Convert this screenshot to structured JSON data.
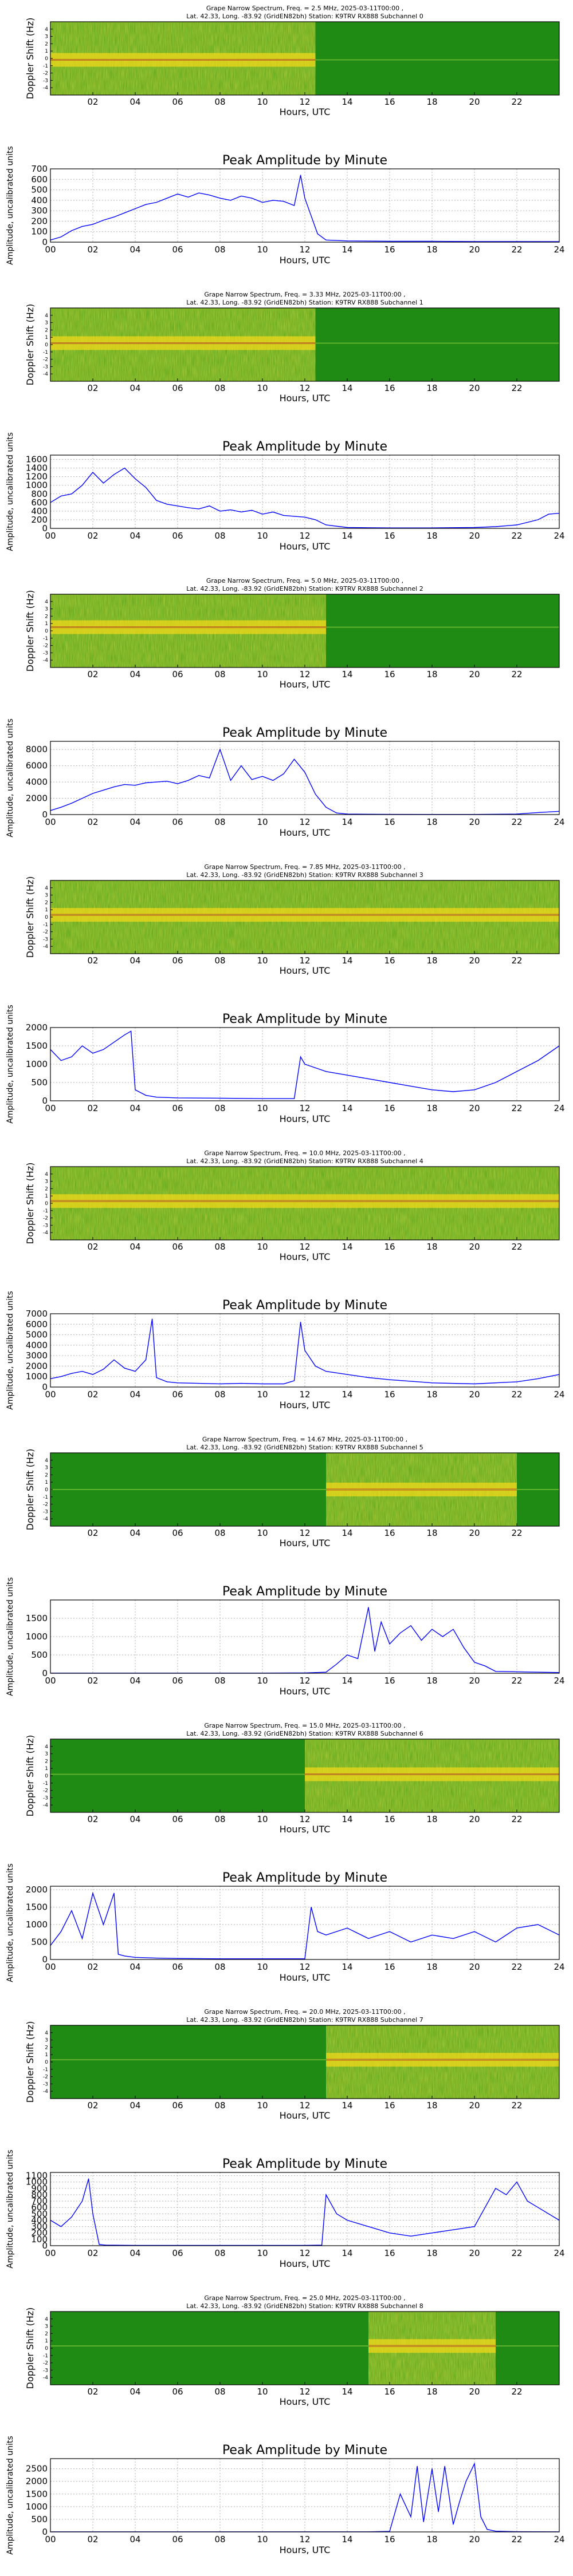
{
  "colors": {
    "spectrogram_background": "#1f8a14",
    "spectrogram_band": "#f0d81a",
    "spectrogram_peak": "#e8300a",
    "line_series": "#0000ff",
    "grid": "#b0b0b0",
    "axes": "#000000"
  },
  "shared": {
    "x_ticks_spectrogram": [
      "02",
      "04",
      "06",
      "08",
      "10",
      "12",
      "14",
      "16",
      "18",
      "20",
      "22"
    ],
    "x_ticks_amplitude": [
      "00",
      "02",
      "04",
      "06",
      "08",
      "10",
      "12",
      "14",
      "16",
      "18",
      "20",
      "22",
      "24"
    ],
    "xlabel": "Hours, UTC",
    "spectrogram_ylabel": "Doppler Shift (Hz)",
    "amplitude_ylabel": "Amplitude, uncalibrated units",
    "amplitude_title": "Peak Amplitude by Minute",
    "doppler_ticks": [
      "4",
      "3",
      "2",
      "1",
      "0",
      "-1",
      "-2",
      "-3",
      "-4"
    ]
  },
  "chart_data": [
    {
      "type": "heatmap",
      "subchannel": 0,
      "title_line1": "Grape Narrow Spectrum, Freq. = 2.5 MHz, 2025-03-11T00:00 ,",
      "title_line2": "Lat. 42.33, Long. -83.92 (GridEN82bh) Station: K9TRV RX888 Subchannel 0",
      "xlim": [
        0,
        24
      ],
      "ylim": [
        -5,
        5
      ],
      "active_hours": [
        0,
        12.5
      ],
      "band_center_hz": -0.2
    },
    {
      "type": "line",
      "subchannel": 0,
      "title": "Peak Amplitude by Minute",
      "xlabel": "Hours, UTC",
      "ylabel": "Amplitude, uncalibrated units",
      "xlim": [
        0,
        24
      ],
      "ylim": [
        0,
        700
      ],
      "yticks": [
        0,
        100,
        200,
        300,
        400,
        500,
        600,
        700
      ],
      "x": [
        0,
        0.5,
        1,
        1.5,
        2,
        2.5,
        3,
        3.5,
        4,
        4.5,
        5,
        5.5,
        6,
        6.5,
        7,
        7.5,
        8,
        8.5,
        9,
        9.5,
        10,
        10.5,
        11,
        11.5,
        11.8,
        12,
        12.3,
        12.6,
        13,
        14,
        16,
        18,
        20,
        22,
        24
      ],
      "values": [
        20,
        50,
        110,
        150,
        170,
        210,
        240,
        280,
        320,
        360,
        380,
        420,
        460,
        430,
        470,
        450,
        420,
        400,
        440,
        420,
        380,
        400,
        390,
        350,
        640,
        420,
        250,
        80,
        20,
        12,
        8,
        8,
        6,
        6,
        5
      ]
    },
    {
      "type": "heatmap",
      "subchannel": 1,
      "title_line1": "Grape Narrow Spectrum, Freq. = 3.33 MHz, 2025-03-11T00:00 ,",
      "title_line2": "Lat. 42.33, Long. -83.92 (GridEN82bh) Station: K9TRV RX888 Subchannel 1",
      "xlim": [
        0,
        24
      ],
      "ylim": [
        -5,
        5
      ],
      "active_hours": [
        0,
        12.5
      ],
      "band_center_hz": 0.2
    },
    {
      "type": "line",
      "subchannel": 1,
      "title": "Peak Amplitude by Minute",
      "xlabel": "Hours, UTC",
      "ylabel": "Amplitude, uncalibrated units",
      "xlim": [
        0,
        24
      ],
      "ylim": [
        0,
        1700
      ],
      "yticks": [
        0,
        200,
        400,
        600,
        800,
        1000,
        1200,
        1400,
        1600
      ],
      "x": [
        0,
        0.5,
        1,
        1.5,
        2,
        2.5,
        3,
        3.5,
        4,
        4.5,
        5,
        5.5,
        6,
        6.5,
        7,
        7.5,
        8,
        8.5,
        9,
        9.5,
        10,
        10.5,
        11,
        11.5,
        12,
        12.5,
        13,
        14,
        16,
        18,
        20,
        21,
        22,
        23,
        23.5,
        24
      ],
      "values": [
        600,
        750,
        800,
        1000,
        1300,
        1050,
        1250,
        1400,
        1150,
        950,
        650,
        560,
        520,
        480,
        450,
        520,
        400,
        430,
        380,
        420,
        330,
        380,
        300,
        280,
        260,
        200,
        80,
        20,
        10,
        10,
        20,
        40,
        80,
        200,
        330,
        350
      ]
    },
    {
      "type": "heatmap",
      "subchannel": 2,
      "title_line1": "Grape Narrow Spectrum, Freq. = 5.0 MHz, 2025-03-11T00:00 ,",
      "title_line2": "Lat. 42.33, Long. -83.92 (GridEN82bh) Station: K9TRV RX888 Subchannel 2",
      "xlim": [
        0,
        24
      ],
      "ylim": [
        -5,
        5
      ],
      "active_hours": [
        0,
        13
      ],
      "band_center_hz": 0.5
    },
    {
      "type": "line",
      "subchannel": 2,
      "title": "Peak Amplitude by Minute",
      "xlabel": "Hours, UTC",
      "ylabel": "Amplitude, uncalibrated units",
      "xlim": [
        0,
        24
      ],
      "ylim": [
        0,
        9000
      ],
      "yticks": [
        0,
        2000,
        4000,
        6000,
        8000
      ],
      "x": [
        0,
        0.5,
        1,
        1.5,
        2,
        2.5,
        3,
        3.5,
        4,
        4.5,
        5,
        5.5,
        6,
        6.5,
        7,
        7.5,
        8,
        8.5,
        9,
        9.5,
        10,
        10.5,
        11,
        11.5,
        12,
        12.5,
        13,
        13.5,
        14,
        16,
        18,
        20,
        22,
        23,
        24
      ],
      "values": [
        500,
        900,
        1400,
        2000,
        2600,
        3000,
        3400,
        3700,
        3600,
        3900,
        4000,
        4100,
        3800,
        4200,
        4800,
        4500,
        8000,
        4200,
        6000,
        4300,
        4700,
        4200,
        5000,
        6800,
        5200,
        2500,
        900,
        200,
        60,
        30,
        20,
        20,
        60,
        250,
        400
      ]
    },
    {
      "type": "heatmap",
      "subchannel": 3,
      "title_line1": "Grape Narrow Spectrum, Freq. = 7.85 MHz, 2025-03-11T00:00 ,",
      "title_line2": "Lat. 42.33, Long. -83.92 (GridEN82bh) Station: K9TRV RX888 Subchannel 3",
      "xlim": [
        0,
        24
      ],
      "ylim": [
        -5,
        5
      ],
      "active_hours": [
        0,
        24
      ],
      "band_center_hz": 0.3
    },
    {
      "type": "line",
      "subchannel": 3,
      "title": "Peak Amplitude by Minute",
      "xlabel": "Hours, UTC",
      "ylabel": "Amplitude, uncalibrated units",
      "xlim": [
        0,
        24
      ],
      "ylim": [
        0,
        2000
      ],
      "yticks": [
        0,
        500,
        1000,
        1500,
        2000
      ],
      "x": [
        0,
        0.5,
        1,
        1.5,
        2,
        2.5,
        3,
        3.5,
        3.8,
        4,
        4.5,
        5,
        6,
        8,
        10,
        11.5,
        11.8,
        12,
        12.5,
        13,
        14,
        15,
        16,
        17,
        18,
        19,
        20,
        21,
        22,
        23,
        24
      ],
      "values": [
        1400,
        1100,
        1200,
        1500,
        1300,
        1400,
        1600,
        1800,
        1900,
        300,
        150,
        100,
        80,
        70,
        60,
        60,
        1200,
        1000,
        900,
        800,
        700,
        600,
        500,
        400,
        300,
        250,
        300,
        500,
        800,
        1100,
        1500
      ]
    },
    {
      "type": "heatmap",
      "subchannel": 4,
      "title_line1": "Grape Narrow Spectrum, Freq. = 10.0 MHz, 2025-03-11T00:00 ,",
      "title_line2": "Lat. 42.33, Long. -83.92 (GridEN82bh) Station: K9TRV RX888 Subchannel 4",
      "xlim": [
        0,
        24
      ],
      "ylim": [
        -5,
        5
      ],
      "active_hours": [
        0,
        24
      ],
      "band_center_hz": 0.3
    },
    {
      "type": "line",
      "subchannel": 4,
      "title": "Peak Amplitude by Minute",
      "xlabel": "Hours, UTC",
      "ylabel": "Amplitude, uncalibrated units",
      "xlim": [
        0,
        24
      ],
      "ylim": [
        0,
        7000
      ],
      "yticks": [
        0,
        1000,
        2000,
        3000,
        4000,
        5000,
        6000,
        7000
      ],
      "x": [
        0,
        0.5,
        1,
        1.5,
        2,
        2.5,
        3,
        3.5,
        4,
        4.5,
        4.8,
        5,
        5.5,
        6,
        7,
        8,
        9,
        10,
        11,
        11.5,
        11.8,
        12,
        12.5,
        13,
        14,
        15,
        16,
        18,
        20,
        22,
        23,
        24
      ],
      "values": [
        800,
        1000,
        1300,
        1500,
        1200,
        1700,
        2600,
        1800,
        1500,
        2600,
        6500,
        900,
        500,
        400,
        350,
        300,
        350,
        300,
        300,
        600,
        6200,
        3500,
        2000,
        1500,
        1200,
        900,
        700,
        400,
        300,
        500,
        800,
        1200
      ]
    },
    {
      "type": "heatmap",
      "subchannel": 5,
      "title_line1": "Grape Narrow Spectrum, Freq. = 14.67 MHz, 2025-03-11T00:00 ,",
      "title_line2": "Lat. 42.33, Long. -83.92 (GridEN82bh) Station: K9TRV RX888 Subchannel 5",
      "xlim": [
        0,
        24
      ],
      "ylim": [
        -5,
        5
      ],
      "active_hours": [
        13,
        22
      ],
      "band_center_hz": 0.0
    },
    {
      "type": "line",
      "subchannel": 5,
      "title": "Peak Amplitude by Minute",
      "xlabel": "Hours, UTC",
      "ylabel": "Amplitude, uncalibrated units",
      "xlim": [
        0,
        24
      ],
      "ylim": [
        0,
        2000
      ],
      "yticks": [
        0,
        500,
        1000,
        1500
      ],
      "x": [
        0,
        2,
        4,
        6,
        8,
        10,
        12,
        13,
        13.5,
        14,
        14.5,
        15,
        15.3,
        15.6,
        16,
        16.5,
        17,
        17.5,
        18,
        18.5,
        19,
        19.5,
        20,
        20.5,
        21,
        22,
        23,
        24
      ],
      "values": [
        5,
        5,
        5,
        5,
        5,
        5,
        10,
        30,
        250,
        500,
        400,
        1800,
        600,
        1400,
        800,
        1100,
        1300,
        900,
        1200,
        1000,
        1200,
        700,
        300,
        200,
        50,
        40,
        30,
        20
      ]
    },
    {
      "type": "heatmap",
      "subchannel": 6,
      "title_line1": "Grape Narrow Spectrum, Freq. = 15.0 MHz, 2025-03-11T00:00 ,",
      "title_line2": "Lat. 42.33, Long. -83.92 (GridEN82bh) Station: K9TRV RX888 Subchannel 6",
      "xlim": [
        0,
        24
      ],
      "ylim": [
        -5,
        5
      ],
      "active_hours": [
        12,
        24
      ],
      "band_center_hz": 0.2
    },
    {
      "type": "line",
      "subchannel": 6,
      "title": "Peak Amplitude by Minute",
      "xlabel": "Hours, UTC",
      "ylabel": "Amplitude, uncalibrated units",
      "xlim": [
        0,
        24
      ],
      "ylim": [
        0,
        2100
      ],
      "yticks": [
        0,
        500,
        1000,
        1500,
        2000
      ],
      "x": [
        0,
        0.5,
        1,
        1.5,
        2,
        2.5,
        3,
        3.2,
        3.5,
        4,
        5,
        6,
        8,
        10,
        12,
        12.3,
        12.6,
        13,
        14,
        15,
        16,
        17,
        18,
        19,
        20,
        21,
        22,
        23,
        24
      ],
      "values": [
        400,
        800,
        1400,
        600,
        1900,
        1000,
        1900,
        150,
        100,
        60,
        40,
        30,
        20,
        20,
        20,
        1500,
        800,
        700,
        900,
        600,
        800,
        500,
        700,
        600,
        800,
        500,
        900,
        1000,
        700
      ]
    },
    {
      "type": "heatmap",
      "subchannel": 7,
      "title_line1": "Grape Narrow Spectrum, Freq. = 20.0 MHz, 2025-03-11T00:00 ,",
      "title_line2": "Lat. 42.33, Long. -83.92 (GridEN82bh) Station: K9TRV RX888 Subchannel 7",
      "xlim": [
        0,
        24
      ],
      "ylim": [
        -5,
        5
      ],
      "active_hours": [
        13,
        24
      ],
      "band_center_hz": 0.3
    },
    {
      "type": "line",
      "subchannel": 7,
      "title": "Peak Amplitude by Minute",
      "xlabel": "Hours, UTC",
      "ylabel": "Amplitude, uncalibrated units",
      "xlim": [
        0,
        24
      ],
      "ylim": [
        0,
        1150
      ],
      "yticks": [
        0,
        100,
        200,
        300,
        400,
        500,
        600,
        700,
        800,
        900,
        1000,
        1100
      ],
      "x": [
        0,
        0.5,
        1,
        1.5,
        1.8,
        2,
        2.3,
        2.6,
        3,
        4,
        6,
        8,
        10,
        12,
        12.8,
        13,
        13.5,
        14,
        15,
        16,
        17,
        18,
        19,
        20,
        20.5,
        21,
        21.5,
        22,
        22.5,
        23,
        24
      ],
      "values": [
        400,
        300,
        450,
        700,
        1050,
        500,
        20,
        10,
        8,
        5,
        5,
        5,
        5,
        5,
        10,
        800,
        500,
        400,
        300,
        200,
        150,
        200,
        250,
        300,
        600,
        900,
        800,
        1000,
        700,
        600,
        400
      ]
    },
    {
      "type": "heatmap",
      "subchannel": 8,
      "title_line1": "Grape Narrow Spectrum, Freq. = 25.0 MHz, 2025-03-11T00:00 ,",
      "title_line2": "Lat. 42.33, Long. -83.92 (GridEN82bh) Station: K9TRV RX888 Subchannel 8",
      "xlim": [
        0,
        24
      ],
      "ylim": [
        -5,
        5
      ],
      "active_hours": [
        15,
        21
      ],
      "band_center_hz": 0.3
    },
    {
      "type": "line",
      "subchannel": 8,
      "title": "Peak Amplitude by Minute",
      "xlabel": "Hours, UTC",
      "ylabel": "Amplitude, uncalibrated units",
      "xlim": [
        0,
        24
      ],
      "ylim": [
        0,
        2900
      ],
      "yticks": [
        0,
        500,
        1000,
        1500,
        2000,
        2500
      ],
      "x": [
        0,
        4,
        8,
        12,
        15,
        16,
        16.5,
        17,
        17.3,
        17.6,
        18,
        18.3,
        18.6,
        19,
        19.3,
        19.6,
        20,
        20.3,
        20.6,
        21,
        22,
        24
      ],
      "values": [
        5,
        5,
        5,
        5,
        5,
        20,
        1500,
        600,
        2600,
        400,
        2500,
        800,
        2600,
        300,
        1200,
        2000,
        2700,
        600,
        100,
        30,
        10,
        5
      ]
    }
  ]
}
